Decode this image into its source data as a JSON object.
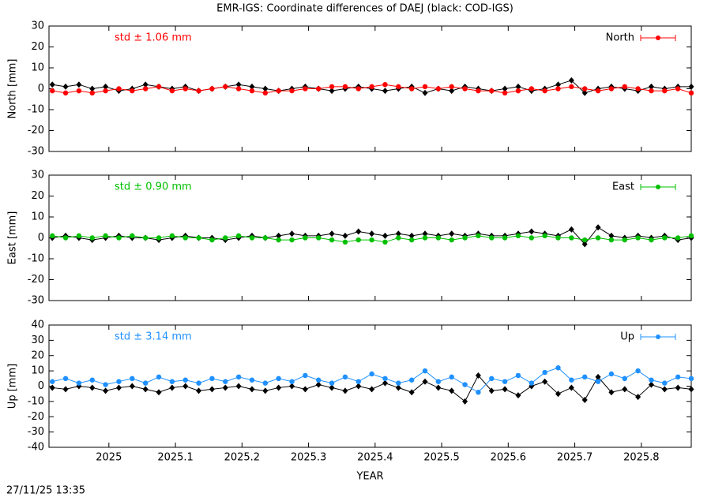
{
  "title": "EMR-IGS: Coordinate differences of DAEJ (black: COD-IGS)",
  "timestamp": "27/11/25 13:35",
  "chart_data": [
    {
      "type": "line",
      "ylabel": "North [mm]",
      "annotation": "std ± 1.06 mm",
      "legend": "upper right",
      "x": [
        2024.915,
        2024.935,
        2024.955,
        2024.975,
        2024.995,
        2025.015,
        2025.035,
        2025.055,
        2025.075,
        2025.095,
        2025.115,
        2025.135,
        2025.155,
        2025.175,
        2025.195,
        2025.215,
        2025.235,
        2025.255,
        2025.275,
        2025.295,
        2025.315,
        2025.335,
        2025.355,
        2025.375,
        2025.395,
        2025.415,
        2025.435,
        2025.455,
        2025.475,
        2025.495,
        2025.515,
        2025.535,
        2025.555,
        2025.575,
        2025.595,
        2025.615,
        2025.635,
        2025.655,
        2025.675,
        2025.695,
        2025.715,
        2025.735,
        2025.755,
        2025.775,
        2025.795,
        2025.815,
        2025.835,
        2025.855,
        2025.875
      ],
      "xlim": [
        2024.91,
        2025.875
      ],
      "ylim": [
        -30,
        30
      ],
      "yticks": [
        -30,
        -20,
        -10,
        0,
        10,
        20,
        30
      ],
      "series": [
        {
          "color": "#000000",
          "values": [
            2,
            1,
            2,
            0,
            1,
            -1,
            0,
            2,
            1,
            0,
            1,
            -1,
            0,
            1,
            2,
            1,
            0,
            -1,
            0,
            1,
            0,
            -1,
            0,
            1,
            0,
            -1,
            0,
            1,
            -2,
            0,
            -1,
            1,
            0,
            -1,
            0,
            1,
            -1,
            0,
            2,
            4,
            -2,
            0,
            1,
            0,
            -1,
            1,
            0,
            1,
            1
          ]
        },
        {
          "name": "North",
          "color": "#ff0000",
          "values": [
            -1,
            -2,
            -1,
            -2,
            -1,
            0,
            -1,
            0,
            1,
            -1,
            0,
            -1,
            0,
            1,
            0,
            -1,
            -2,
            -1,
            -1,
            0,
            0,
            1,
            1,
            0,
            1,
            2,
            1,
            0,
            1,
            0,
            1,
            0,
            -1,
            -1,
            -2,
            -1,
            0,
            -1,
            0,
            1,
            0,
            -1,
            0,
            1,
            0,
            -1,
            -1,
            0,
            -2
          ]
        }
      ]
    },
    {
      "type": "line",
      "ylabel": "East [mm]",
      "annotation": "std ± 0.90 mm",
      "legend": "upper right",
      "x": [
        2024.915,
        2024.935,
        2024.955,
        2024.975,
        2024.995,
        2025.015,
        2025.035,
        2025.055,
        2025.075,
        2025.095,
        2025.115,
        2025.135,
        2025.155,
        2025.175,
        2025.195,
        2025.215,
        2025.235,
        2025.255,
        2025.275,
        2025.295,
        2025.315,
        2025.335,
        2025.355,
        2025.375,
        2025.395,
        2025.415,
        2025.435,
        2025.455,
        2025.475,
        2025.495,
        2025.515,
        2025.535,
        2025.555,
        2025.575,
        2025.595,
        2025.615,
        2025.635,
        2025.655,
        2025.675,
        2025.695,
        2025.715,
        2025.735,
        2025.755,
        2025.775,
        2025.795,
        2025.815,
        2025.835,
        2025.855,
        2025.875
      ],
      "xlim": [
        2024.91,
        2025.875
      ],
      "ylim": [
        -30,
        30
      ],
      "yticks": [
        -30,
        -20,
        -10,
        0,
        10,
        20,
        30
      ],
      "series": [
        {
          "color": "#000000",
          "values": [
            0,
            1,
            0,
            -1,
            0,
            1,
            0,
            0,
            -1,
            0,
            1,
            0,
            0,
            -1,
            0,
            1,
            0,
            1,
            2,
            1,
            1,
            2,
            1,
            3,
            2,
            1,
            2,
            1,
            2,
            1,
            2,
            1,
            2,
            1,
            1,
            2,
            3,
            2,
            1,
            4,
            -3,
            5,
            1,
            0,
            1,
            0,
            1,
            -1,
            0
          ]
        },
        {
          "name": "East",
          "color": "#00c000",
          "values": [
            1,
            0,
            1,
            0,
            1,
            0,
            1,
            0,
            0,
            1,
            0,
            0,
            -1,
            0,
            1,
            0,
            0,
            -1,
            -1,
            0,
            0,
            -1,
            -2,
            -1,
            -1,
            -2,
            0,
            -1,
            0,
            0,
            -1,
            0,
            1,
            0,
            0,
            1,
            0,
            1,
            0,
            0,
            -1,
            0,
            -1,
            -1,
            0,
            -1,
            0,
            0,
            1
          ]
        }
      ]
    },
    {
      "type": "line",
      "ylabel": "Up [mm]",
      "xlabel": "YEAR",
      "annotation": "std ± 3.14 mm",
      "legend": "upper right",
      "x": [
        2024.915,
        2024.935,
        2024.955,
        2024.975,
        2024.995,
        2025.015,
        2025.035,
        2025.055,
        2025.075,
        2025.095,
        2025.115,
        2025.135,
        2025.155,
        2025.175,
        2025.195,
        2025.215,
        2025.235,
        2025.255,
        2025.275,
        2025.295,
        2025.315,
        2025.335,
        2025.355,
        2025.375,
        2025.395,
        2025.415,
        2025.435,
        2025.455,
        2025.475,
        2025.495,
        2025.515,
        2025.535,
        2025.555,
        2025.575,
        2025.595,
        2025.615,
        2025.635,
        2025.655,
        2025.675,
        2025.695,
        2025.715,
        2025.735,
        2025.755,
        2025.775,
        2025.795,
        2025.815,
        2025.835,
        2025.855,
        2025.875
      ],
      "xlim": [
        2024.91,
        2025.875
      ],
      "xticks": [
        2025,
        2025.1,
        2025.2,
        2025.3,
        2025.4,
        2025.5,
        2025.6,
        2025.7,
        2025.8
      ],
      "ylim": [
        -40,
        40
      ],
      "yticks": [
        -40,
        -30,
        -20,
        -10,
        0,
        10,
        20,
        30,
        40
      ],
      "series": [
        {
          "color": "#000000",
          "values": [
            -1,
            -2,
            0,
            -1,
            -3,
            -1,
            0,
            -2,
            -4,
            -1,
            0,
            -3,
            -2,
            -1,
            0,
            -2,
            -3,
            -1,
            0,
            -2,
            1,
            -1,
            -3,
            0,
            -2,
            2,
            -1,
            -4,
            3,
            -1,
            -3,
            -10,
            7,
            -3,
            -2,
            -6,
            0,
            3,
            -5,
            -1,
            -9,
            6,
            -4,
            -2,
            -7,
            1,
            -2,
            -1,
            -2
          ]
        },
        {
          "name": "Up",
          "color": "#1e90ff",
          "values": [
            3,
            5,
            2,
            4,
            1,
            3,
            5,
            2,
            6,
            3,
            4,
            2,
            5,
            3,
            6,
            4,
            2,
            5,
            3,
            7,
            4,
            2,
            6,
            3,
            8,
            5,
            2,
            4,
            10,
            3,
            6,
            1,
            -4,
            5,
            3,
            7,
            2,
            9,
            12,
            4,
            6,
            3,
            8,
            5,
            10,
            4,
            2,
            6,
            5
          ]
        }
      ]
    }
  ]
}
